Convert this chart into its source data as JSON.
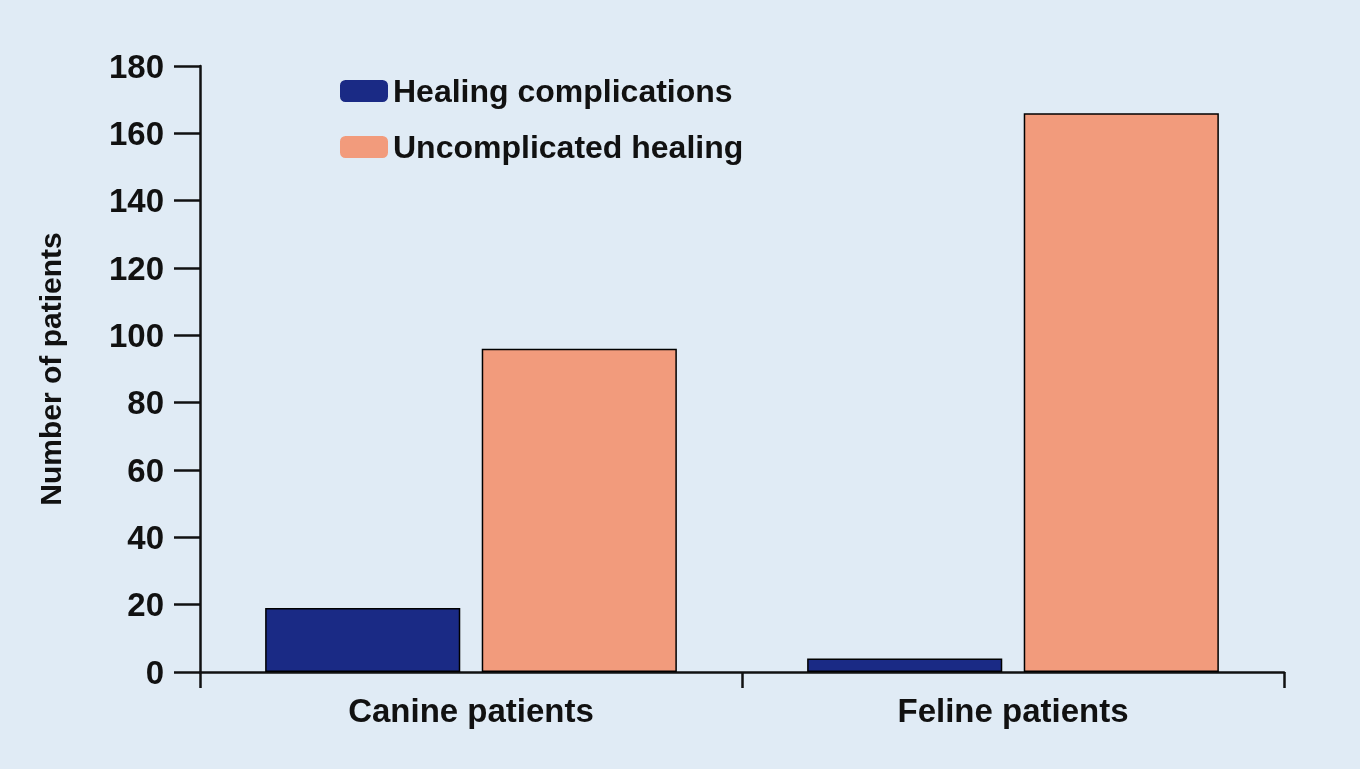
{
  "chart_data": {
    "type": "bar",
    "ylabel": "Number of patients",
    "categories": [
      "Canine patients",
      "Feline patients"
    ],
    "series": [
      {
        "name": "Healing complications",
        "color": "#1a2a85",
        "values": [
          19,
          4
        ]
      },
      {
        "name": "Uncomplicated healing",
        "color": "#f29b7c",
        "values": [
          96,
          166
        ]
      }
    ],
    "ylim": [
      0,
      180
    ],
    "yticks": [
      0,
      20,
      40,
      60,
      80,
      100,
      120,
      140,
      160,
      180
    ],
    "grid": false,
    "legend": "top left"
  }
}
